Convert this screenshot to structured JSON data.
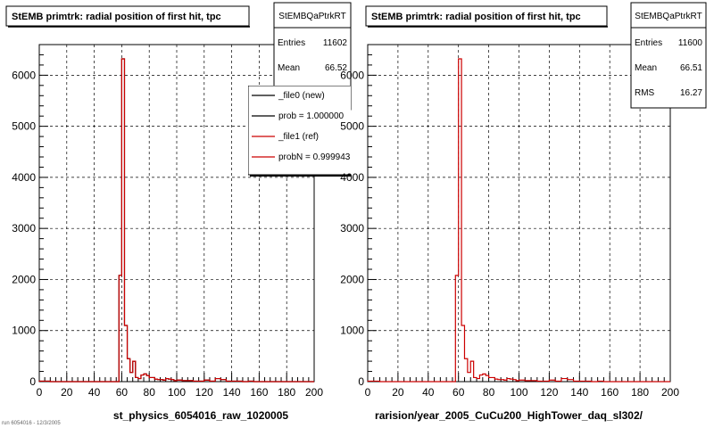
{
  "corner_text": "run 6054016 - 12/3/2005",
  "colors": {
    "new": "#000000",
    "ref": "#cc0000"
  },
  "chart_data": [
    {
      "type": "step-histogram",
      "title": "StEMB primtrk: radial position of first hit, tpc",
      "xlabel": "st_physics_6054016_raw_1020005",
      "xlim": [
        0,
        200
      ],
      "ylim": [
        0,
        6600
      ],
      "x_ticks": [
        0,
        20,
        40,
        60,
        80,
        100,
        120,
        140,
        160,
        180,
        200
      ],
      "y_ticks": [
        0,
        1000,
        2000,
        3000,
        4000,
        5000,
        6000
      ],
      "grid": true,
      "bin_edges": [
        0,
        4,
        8,
        12,
        16,
        20,
        24,
        28,
        32,
        36,
        40,
        44,
        48,
        52,
        56,
        58,
        60,
        62,
        64,
        66,
        68,
        70,
        72,
        74,
        76,
        78,
        80,
        82,
        84,
        86,
        88,
        90,
        92,
        94,
        96,
        98,
        100,
        104,
        108,
        112,
        116,
        120,
        124,
        128,
        132,
        136,
        140,
        144,
        148,
        152,
        156,
        160,
        164,
        168,
        172,
        176,
        180,
        184,
        188,
        192,
        196,
        200
      ],
      "series": [
        {
          "name": "_file0 (new)",
          "values": [
            10,
            10,
            0,
            0,
            0,
            0,
            0,
            0,
            0,
            0,
            0,
            0,
            0,
            0,
            0,
            2080,
            6320,
            1100,
            450,
            180,
            400,
            80,
            60,
            130,
            150,
            120,
            80,
            80,
            50,
            40,
            40,
            30,
            60,
            50,
            40,
            20,
            30,
            20,
            20,
            10,
            10,
            30,
            10,
            60,
            40,
            10,
            10,
            10,
            0,
            10,
            0,
            0,
            0,
            0,
            0,
            0,
            0,
            0,
            0,
            0,
            0
          ]
        },
        {
          "name": "_file1 (ref)",
          "values": [
            10,
            10,
            0,
            0,
            0,
            0,
            0,
            0,
            0,
            0,
            0,
            0,
            0,
            0,
            0,
            2080,
            6320,
            1100,
            450,
            180,
            400,
            80,
            60,
            130,
            150,
            120,
            80,
            80,
            50,
            40,
            40,
            30,
            60,
            50,
            40,
            20,
            30,
            20,
            20,
            10,
            10,
            30,
            10,
            60,
            40,
            10,
            10,
            10,
            0,
            10,
            0,
            0,
            0,
            0,
            0,
            0,
            0,
            0,
            0,
            0,
            0
          ]
        }
      ],
      "stats": {
        "name": "StEMBQaPtrkRT",
        "rows": [
          {
            "label": "Entries",
            "value": "11602"
          },
          {
            "label": "Mean",
            "value": "66.52"
          }
        ]
      },
      "legend": {
        "placement": "top-right",
        "entries": [
          {
            "label": "_file0 (new)",
            "color": "#000000"
          },
          {
            "label": "prob = 1.000000",
            "color": "#000000"
          },
          {
            "label": "_file1 (ref)",
            "color": "#cc0000"
          },
          {
            "label": "probN = 0.999943",
            "color": "#cc0000"
          }
        ]
      }
    },
    {
      "type": "step-histogram",
      "title": "StEMB primtrk: radial position of first hit, tpc",
      "xlabel": "rarision/year_2005_CuCu200_HighTower_daq_sl302/",
      "xlim": [
        0,
        200
      ],
      "ylim": [
        0,
        6600
      ],
      "x_ticks": [
        0,
        20,
        40,
        60,
        80,
        100,
        120,
        140,
        160,
        180,
        200
      ],
      "y_ticks": [
        0,
        1000,
        2000,
        3000,
        4000,
        5000,
        6000
      ],
      "grid": true,
      "bin_edges": [
        0,
        4,
        8,
        12,
        16,
        20,
        24,
        28,
        32,
        36,
        40,
        44,
        48,
        52,
        56,
        58,
        60,
        62,
        64,
        66,
        68,
        70,
        72,
        74,
        76,
        78,
        80,
        82,
        84,
        86,
        88,
        90,
        92,
        94,
        96,
        98,
        100,
        104,
        108,
        112,
        116,
        120,
        124,
        128,
        132,
        136,
        140,
        144,
        148,
        152,
        156,
        160,
        164,
        168,
        172,
        176,
        180,
        184,
        188,
        192,
        196,
        200
      ],
      "series": [
        {
          "name": "_file1 (ref)",
          "values": [
            10,
            10,
            0,
            0,
            0,
            0,
            0,
            0,
            0,
            0,
            0,
            0,
            0,
            0,
            0,
            2080,
            6320,
            1100,
            450,
            180,
            400,
            80,
            60,
            130,
            150,
            120,
            80,
            80,
            50,
            40,
            40,
            30,
            60,
            50,
            40,
            20,
            30,
            20,
            20,
            10,
            10,
            30,
            10,
            60,
            40,
            10,
            10,
            10,
            0,
            10,
            0,
            0,
            0,
            0,
            0,
            0,
            0,
            0,
            0,
            0,
            0
          ]
        }
      ],
      "stats": {
        "name": "StEMBQaPtrkRT",
        "rows": [
          {
            "label": "Entries",
            "value": "11600"
          },
          {
            "label": "Mean",
            "value": "66.51"
          },
          {
            "label": "RMS",
            "value": "16.27"
          }
        ]
      }
    }
  ]
}
